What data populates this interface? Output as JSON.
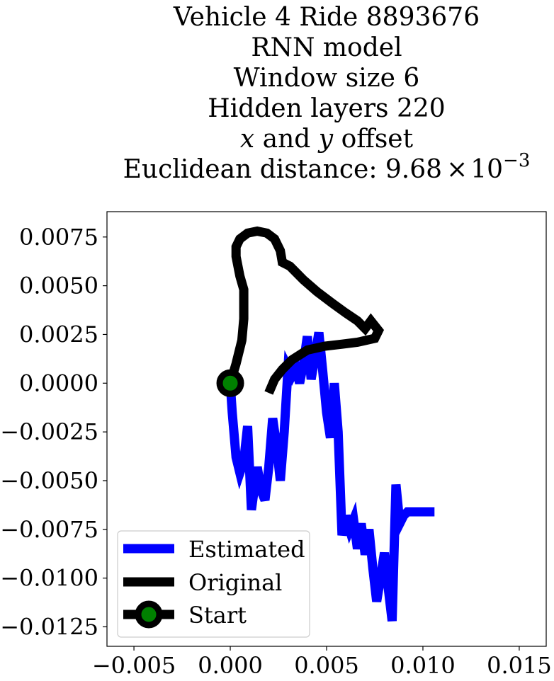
{
  "title_lines": [
    "Vehicle 4 Ride 8893676",
    "RNN model",
    "Window size 6",
    "Hidden layers 220"
  ],
  "title_offset": {
    "x": "x",
    "mid": " and ",
    "y": "y",
    "end": " offset"
  },
  "title_distance": {
    "prefix": "Euclidean distance: 9.68",
    "times": "×",
    "base": "10",
    "exp": "−3"
  },
  "chart_data": {
    "type": "line",
    "xlim": [
      -0.0064,
      0.0164
    ],
    "ylim": [
      -0.0135,
      0.0088
    ],
    "xticks": [
      -0.005,
      0.0,
      0.005,
      0.01,
      0.015
    ],
    "xtick_labels": [
      "−0.005",
      "0.000",
      "0.005",
      "0.010",
      "0.015"
    ],
    "yticks": [
      0.0075,
      0.005,
      0.0025,
      0.0,
      -0.0025,
      -0.005,
      -0.0075,
      -0.01,
      -0.0125
    ],
    "ytick_labels": [
      "0.0075",
      "0.0050",
      "0.0025",
      "0.0000",
      "−0.0025",
      "−0.0050",
      "−0.0075",
      "−0.0100",
      "−0.0125"
    ],
    "grid": false,
    "legend_position": "lower-left",
    "series": [
      {
        "name": "Estimated",
        "color": "#0000ff",
        "x": [
          0.0,
          0.0001,
          0.0003,
          0.0005,
          0.0007,
          0.0009,
          0.0011,
          0.0014,
          0.0016,
          0.0018,
          0.002,
          0.0022,
          0.0024,
          0.0026,
          0.0028,
          0.003,
          0.0032,
          0.0034,
          0.0036,
          0.0038,
          0.004,
          0.0042,
          0.0044,
          0.0046,
          0.0048,
          0.005,
          0.0052,
          0.0054,
          0.0056,
          0.0058,
          0.006,
          0.0062,
          0.0064,
          0.0066,
          0.0068,
          0.007,
          0.0072,
          0.0074,
          0.0076,
          0.0078,
          0.008,
          0.0082,
          0.0084,
          0.0086,
          0.0088,
          0.009,
          0.0092,
          0.0094,
          0.0096,
          0.0098,
          0.01,
          0.0102,
          0.0104,
          0.0106
        ],
        "y": [
          0.0,
          -0.0015,
          -0.0038,
          -0.0046,
          -0.004,
          -0.0022,
          -0.0065,
          -0.0043,
          -0.0055,
          -0.006,
          -0.0043,
          -0.0018,
          -0.0032,
          -0.005,
          -0.0025,
          0.0008,
          0.0004,
          0.0008,
          0.0,
          0.001,
          0.0024,
          0.0002,
          0.0014,
          0.0026,
          0.0006,
          -0.0015,
          -0.0028,
          0.0,
          -0.0025,
          -0.0078,
          -0.0068,
          -0.0075,
          -0.007,
          -0.0085,
          -0.0072,
          -0.0088,
          -0.0075,
          -0.0095,
          -0.0112,
          -0.01,
          -0.0087,
          -0.0105,
          -0.0122,
          -0.0052,
          -0.0072,
          -0.0068,
          -0.0066,
          -0.0066,
          -0.0066,
          -0.0066,
          -0.0066,
          -0.0066,
          -0.0066,
          -0.0066
        ]
      },
      {
        "name": "Original",
        "color": "#000000",
        "x": [
          0.0,
          0.0003,
          0.0006,
          0.0007,
          0.0007,
          0.0005,
          0.0003,
          0.0003,
          0.0005,
          0.0009,
          0.0014,
          0.0019,
          0.0023,
          0.0026,
          0.0027,
          0.0031,
          0.0033,
          0.0038,
          0.0045,
          0.0053,
          0.006,
          0.0066,
          0.007,
          0.0073,
          0.0077,
          0.0075,
          0.0066,
          0.0058,
          0.0049,
          0.004,
          0.0032,
          0.0027,
          0.0023,
          0.002
        ],
        "y": [
          0.0,
          0.001,
          0.0022,
          0.0033,
          0.0048,
          0.0055,
          0.0065,
          0.007,
          0.0074,
          0.0077,
          0.0078,
          0.0077,
          0.0074,
          0.0068,
          0.0062,
          0.006,
          0.0058,
          0.0053,
          0.0047,
          0.0041,
          0.0036,
          0.0032,
          0.0028,
          0.0032,
          0.0027,
          0.0023,
          0.0021,
          0.002,
          0.0019,
          0.0017,
          0.0012,
          0.0007,
          0.0002,
          -0.0005
        ]
      }
    ],
    "start_marker": {
      "name": "Start",
      "x": 0.0,
      "y": 0.0,
      "color": "#008000",
      "edge_color": "#000000"
    }
  }
}
